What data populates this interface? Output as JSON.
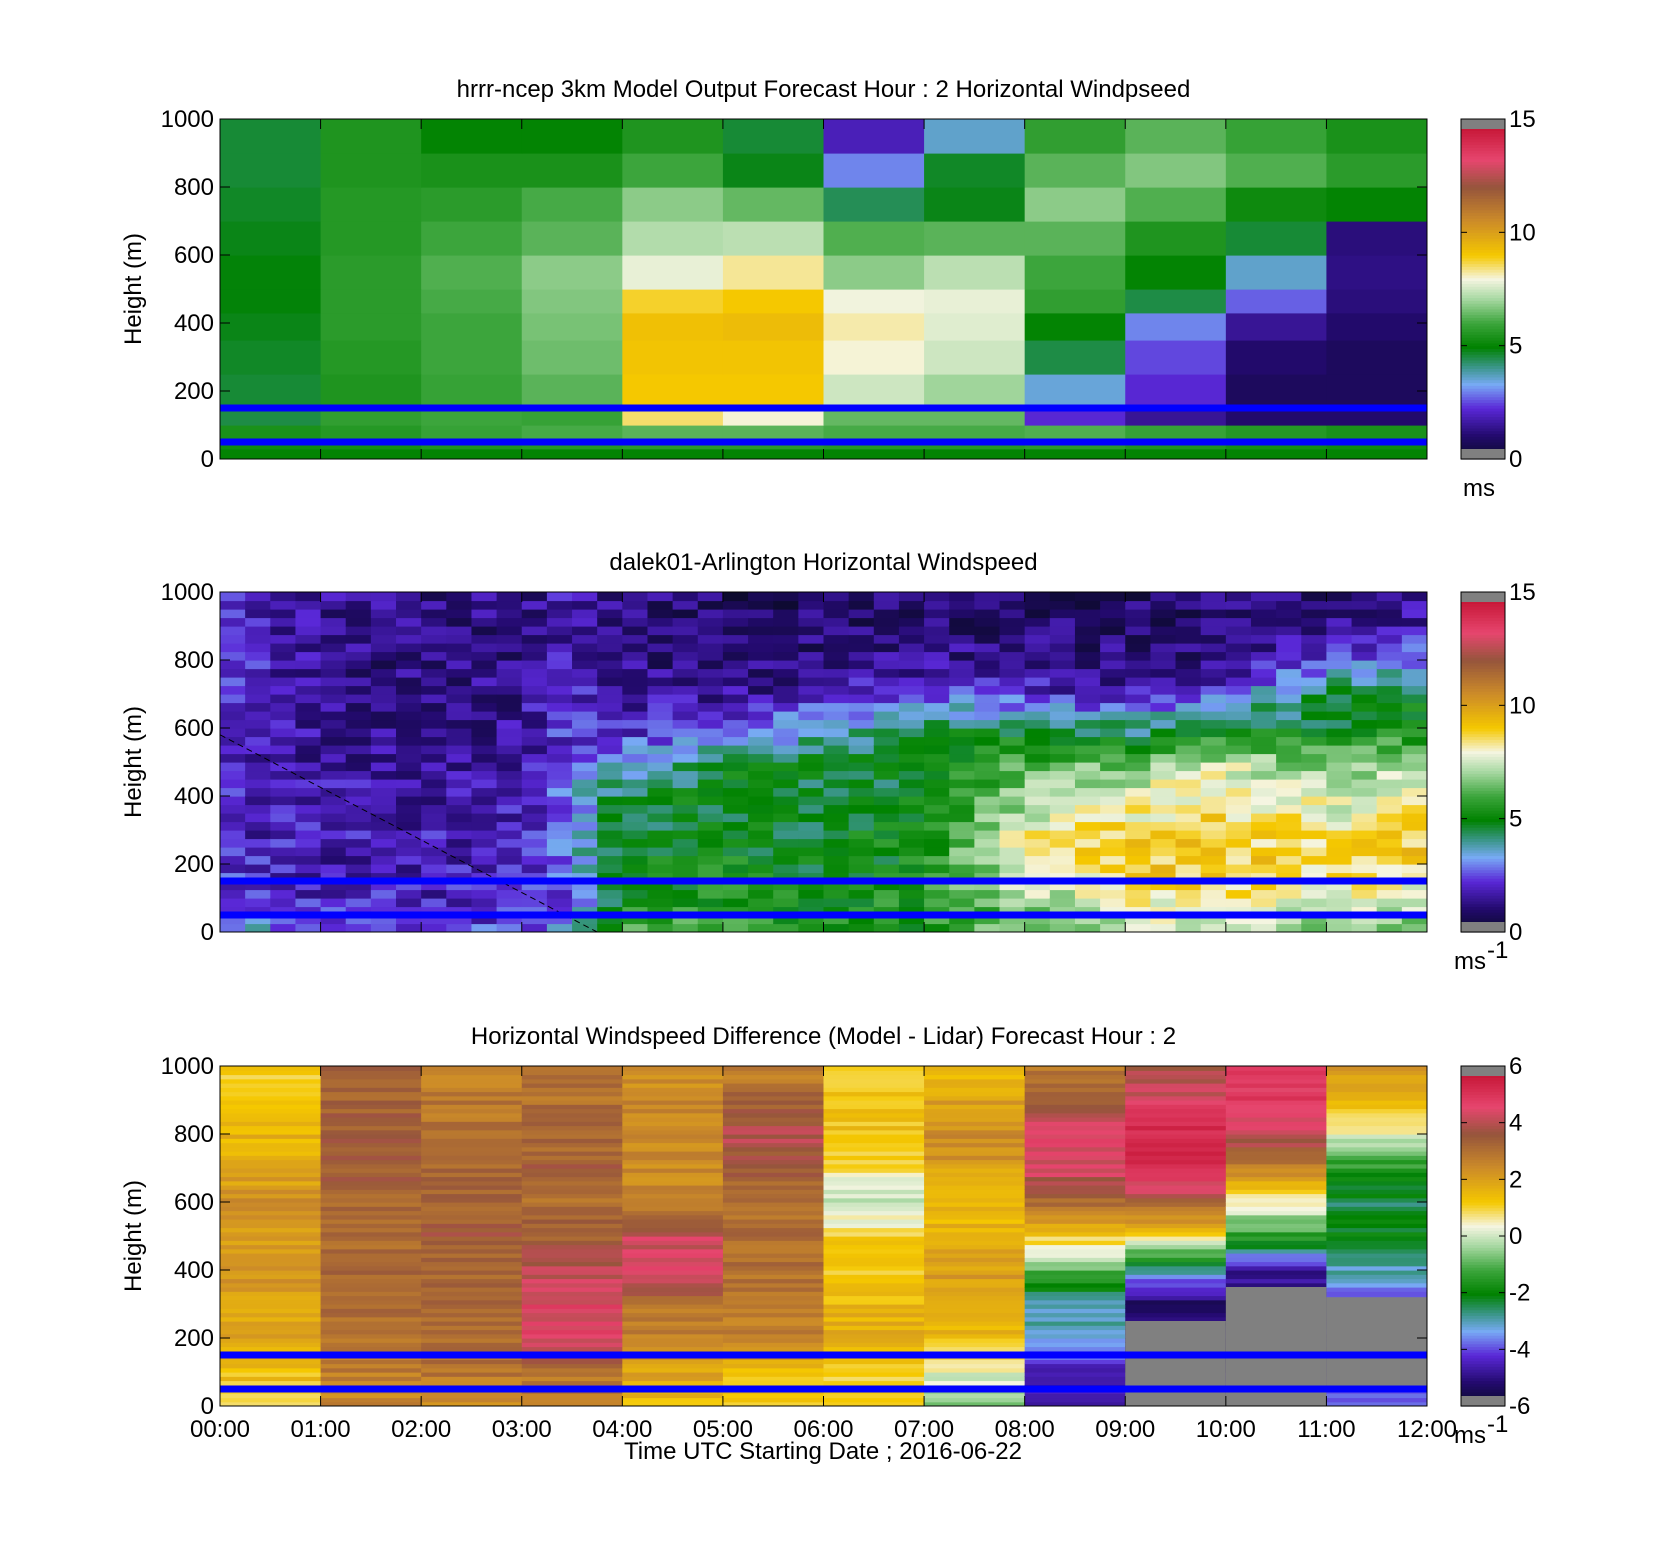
{
  "figure": {
    "xlabel": "Time UTC  Starting Date ; 2016-06-22",
    "x_tick_labels": [
      "00:00",
      "01:00",
      "02:00",
      "03:00",
      "04:00",
      "05:00",
      "06:00",
      "07:00",
      "08:00",
      "09:00",
      "10:00",
      "11:00",
      "12:00"
    ]
  },
  "chart_data": [
    {
      "type": "heatmap",
      "title": "hrrr-ncep 3km Model Output   Forecast Hour : 2 Horizontal Windpseed",
      "ylabel": "Height (m)",
      "xlim": [
        0,
        12
      ],
      "ylim": [
        0,
        1000
      ],
      "y_tick_labels": [
        "0",
        "200",
        "400",
        "600",
        "800",
        "1000"
      ],
      "colorbar": {
        "ticks": [
          0,
          5,
          10,
          15
        ],
        "tick_labels": [
          "0",
          "5",
          "10",
          "15"
        ],
        "range": [
          0,
          15
        ],
        "unit": "ms"
      },
      "reference_lines_m": [
        150,
        50
      ],
      "reference_line_color": "#0000ff",
      "time_bins_hours": [
        0,
        1,
        2,
        3,
        4,
        5,
        6,
        7,
        8,
        9,
        10,
        11,
        12
      ],
      "height_levels_m": [
        0,
        30,
        60,
        100,
        150,
        250,
        350,
        430,
        500,
        600,
        700,
        800,
        900,
        1000
      ],
      "values_m_per_s": [
        [
          5.0,
          5.0,
          5.0,
          5.0,
          5.0,
          5.0,
          5.0,
          5.0,
          5.0,
          5.0,
          5.0,
          5.0,
          5.0
        ],
        [
          5.2,
          5.3,
          5.5,
          5.6,
          5.7,
          5.7,
          5.6,
          5.6,
          5.7,
          5.5,
          5.3,
          5.2,
          5.0
        ],
        [
          5.4,
          5.6,
          5.9,
          6.1,
          6.3,
          6.3,
          6.1,
          6.1,
          6.2,
          5.9,
          5.6,
          5.4,
          5.2
        ],
        [
          4.5,
          5.8,
          6.0,
          5.9,
          8.5,
          8.0,
          6.4,
          6.4,
          2.2,
          1.5,
          1.0,
          1.0,
          2.8
        ],
        [
          4.6,
          5.5,
          5.9,
          6.3,
          9.0,
          9.0,
          7.5,
          7.0,
          3.5,
          2.2,
          0.8,
          0.8,
          1.0
        ],
        [
          4.7,
          5.6,
          6.0,
          6.5,
          9.1,
          9.1,
          8.0,
          7.5,
          4.5,
          2.5,
          1.0,
          0.8,
          0.8
        ],
        [
          4.8,
          5.7,
          6.0,
          6.6,
          9.2,
          9.3,
          8.2,
          7.7,
          5.0,
          3.0,
          1.5,
          1.0,
          0.9
        ],
        [
          4.9,
          5.7,
          6.1,
          6.7,
          8.8,
          9.0,
          7.9,
          7.8,
          5.8,
          4.5,
          2.7,
          1.2,
          1.0
        ],
        [
          4.9,
          5.7,
          6.2,
          6.8,
          7.8,
          8.3,
          6.8,
          7.3,
          6.0,
          5.0,
          3.6,
          1.3,
          1.0
        ],
        [
          4.8,
          5.6,
          6.0,
          6.3,
          7.2,
          7.3,
          6.2,
          6.3,
          6.3,
          5.5,
          4.6,
          1.2,
          1.1
        ],
        [
          4.7,
          5.6,
          5.7,
          6.1,
          6.8,
          6.4,
          4.4,
          4.8,
          6.8,
          6.2,
          5.2,
          5.0,
          2.5
        ],
        [
          4.6,
          5.5,
          5.4,
          5.4,
          6.0,
          4.8,
          3.0,
          4.7,
          6.3,
          6.7,
          6.2,
          5.7,
          3.5
        ],
        [
          4.6,
          5.5,
          5.0,
          5.0,
          5.5,
          4.6,
          1.9,
          3.6,
          5.8,
          6.3,
          5.9,
          5.4,
          4.8
        ],
        [
          4.6,
          5.4,
          5.1,
          4.8,
          5.0,
          4.4,
          1.8,
          3.4,
          5.6,
          6.0,
          5.6,
          5.3,
          4.8
        ]
      ]
    },
    {
      "type": "heatmap",
      "title": "dalek01-Arlington  Horizontal Windspeed",
      "ylabel": "Height (m)",
      "xlim": [
        0,
        12
      ],
      "ylim": [
        0,
        1000
      ],
      "y_tick_labels": [
        "0",
        "200",
        "400",
        "600",
        "800",
        "1000"
      ],
      "colorbar": {
        "ticks": [
          0,
          5,
          10,
          15
        ],
        "tick_labels": [
          "0",
          "5",
          "10",
          "15"
        ],
        "range": [
          0,
          15
        ],
        "unit": "ms",
        "unit_exponent": "-1"
      },
      "reference_lines_m": [
        150,
        50
      ],
      "reference_line_color": "#0000ff",
      "data_end_hour": 11.85,
      "annotation_line": {
        "from": [
          0,
          580
        ],
        "to": [
          3.75,
          0
        ],
        "style": "dashed"
      },
      "time_knots_hours": [
        0,
        1,
        2,
        3,
        3.5,
        4,
        5,
        6,
        7,
        8,
        9,
        10,
        11,
        11.85
      ],
      "height_knots_m": [
        0,
        100,
        200,
        300,
        400,
        500,
        600,
        700,
        800,
        900,
        1000
      ],
      "values_m_per_s": [
        [
          4.0,
          2.5,
          2.5,
          2.5,
          3.0,
          6.0,
          6.0,
          5.5,
          5.5,
          6.5,
          7.0,
          7.0,
          6.5,
          6.5
        ],
        [
          2.5,
          2.0,
          2.0,
          2.0,
          2.8,
          5.0,
          5.5,
          5.0,
          5.5,
          7.0,
          8.0,
          8.5,
          8.0,
          7.5
        ],
        [
          2.2,
          1.8,
          1.8,
          2.0,
          3.0,
          4.8,
          5.2,
          4.8,
          5.3,
          8.0,
          9.0,
          9.0,
          8.5,
          9.0
        ],
        [
          2.0,
          1.8,
          1.8,
          2.0,
          3.2,
          4.5,
          5.0,
          4.8,
          5.2,
          8.0,
          8.6,
          8.8,
          8.2,
          8.8
        ],
        [
          2.0,
          1.7,
          1.7,
          1.8,
          3.0,
          4.6,
          4.9,
          4.6,
          5.0,
          7.0,
          7.8,
          8.5,
          7.5,
          8.0
        ],
        [
          1.9,
          1.6,
          1.5,
          1.6,
          2.6,
          3.2,
          4.8,
          4.5,
          4.8,
          6.0,
          6.5,
          7.5,
          6.5,
          7.0
        ],
        [
          2.0,
          1.5,
          1.4,
          1.5,
          2.4,
          2.0,
          2.6,
          3.5,
          4.6,
          4.8,
          4.0,
          4.5,
          5.0,
          5.2
        ],
        [
          2.1,
          1.4,
          1.3,
          1.4,
          2.2,
          1.5,
          1.5,
          1.7,
          2.5,
          2.2,
          1.8,
          2.6,
          4.5,
          4.8
        ],
        [
          2.3,
          1.4,
          1.2,
          1.3,
          2.0,
          1.3,
          1.1,
          1.2,
          1.4,
          1.3,
          1.2,
          1.3,
          2.5,
          3.0
        ],
        [
          2.4,
          1.4,
          1.2,
          1.2,
          1.8,
          1.2,
          0.9,
          1.0,
          1.1,
          1.1,
          1.0,
          1.0,
          1.3,
          1.6
        ],
        [
          2.2,
          1.5,
          1.3,
          1.3,
          1.8,
          1.2,
          0.9,
          0.9,
          1.0,
          1.0,
          0.9,
          1.0,
          1.2,
          1.5
        ]
      ]
    },
    {
      "type": "heatmap",
      "title": "Horizontal Windspeed Difference (Model - Lidar) Forecast Hour : 2",
      "ylabel": "Height (m)",
      "xlim": [
        0,
        12
      ],
      "ylim": [
        0,
        1000
      ],
      "y_tick_labels": [
        "0",
        "200",
        "400",
        "600",
        "800",
        "1000"
      ],
      "colorbar": {
        "ticks": [
          -6,
          -4,
          -2,
          0,
          2,
          4,
          6
        ],
        "tick_labels": [
          "-6",
          "-4",
          "-2",
          "0",
          "2",
          "4",
          "6"
        ],
        "range": [
          -6,
          6
        ],
        "unit": "ms",
        "unit_exponent": "-1"
      },
      "reference_lines_m": [
        150,
        50
      ],
      "reference_line_color": "#0000ff",
      "missing_data_regions": [
        {
          "hours": [
            9,
            10
          ],
          "heights_m": [
            0,
            250
          ]
        },
        {
          "hours": [
            10,
            11
          ],
          "heights_m": [
            0,
            350
          ]
        },
        {
          "hours": [
            11,
            12
          ],
          "heights_m": [
            60,
            320
          ]
        }
      ],
      "time_bins_hours": [
        0,
        1,
        2,
        3,
        4,
        5,
        6,
        7,
        8,
        9,
        10,
        11,
        12
      ],
      "height_knots_m": [
        0,
        100,
        200,
        300,
        400,
        500,
        600,
        700,
        800,
        900,
        1000
      ],
      "values_m_per_s": [
        [
          1.2,
          2.5,
          2.5,
          2.5,
          1.2,
          1.0,
          1.0,
          -0.6,
          -4.6,
          -4.5,
          -4.6,
          -4.0
        ],
        [
          1.3,
          2.7,
          2.9,
          3.0,
          2.0,
          1.5,
          1.0,
          0.3,
          -4.8,
          -5.0,
          -5.2,
          -4.2
        ],
        [
          1.8,
          3.0,
          3.0,
          4.5,
          2.5,
          2.5,
          1.8,
          1.5,
          -3.0,
          -5.3,
          -5.2,
          -3.8
        ],
        [
          1.8,
          3.1,
          3.1,
          4.5,
          3.0,
          3.0,
          1.5,
          2.0,
          -3.0,
          -5.3,
          -5.3,
          -3.8
        ],
        [
          2.2,
          3.1,
          3.3,
          4.0,
          4.5,
          3.0,
          1.3,
          2.0,
          -1.0,
          -3.0,
          -4.8,
          -3.0
        ],
        [
          2.0,
          3.2,
          3.5,
          3.3,
          4.2,
          3.0,
          1.0,
          1.5,
          1.2,
          1.0,
          -1.5,
          -2.0
        ],
        [
          2.5,
          3.3,
          3.2,
          3.1,
          2.5,
          3.0,
          -0.2,
          1.5,
          3.0,
          3.5,
          0.5,
          -2.5
        ],
        [
          1.8,
          3.5,
          3.2,
          3.4,
          2.5,
          3.5,
          0.8,
          2.0,
          4.4,
          5.3,
          2.5,
          -1.5
        ],
        [
          1.6,
          3.5,
          3.0,
          3.2,
          2.5,
          4.0,
          1.3,
          2.5,
          4.5,
          5.2,
          4.3,
          0.2
        ],
        [
          1.3,
          3.2,
          2.8,
          3.0,
          2.5,
          3.2,
          1.2,
          2.0,
          3.5,
          4.5,
          4.8,
          1.5
        ],
        [
          1.2,
          3.4,
          2.6,
          2.8,
          2.2,
          2.6,
          1.2,
          1.4,
          2.8,
          3.6,
          4.6,
          2.2
        ]
      ]
    }
  ]
}
